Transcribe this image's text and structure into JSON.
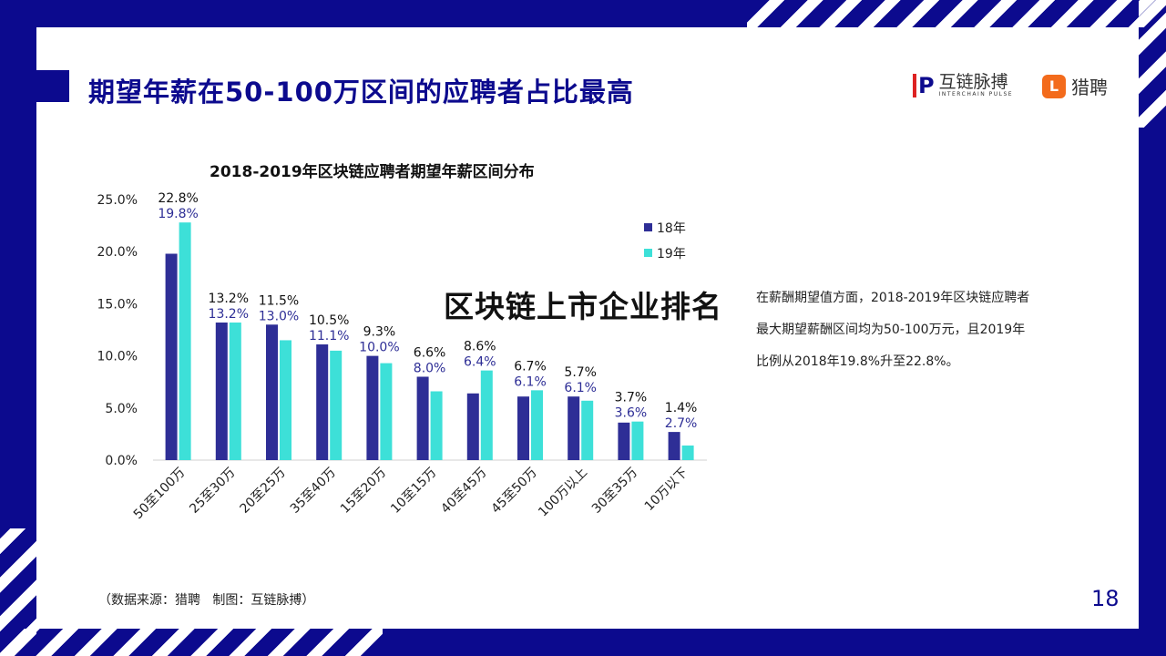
{
  "header": {
    "title": "期望年薪在50-100万区间的应聘者占比最高"
  },
  "logos": {
    "interchain_name": "互链脉搏",
    "interchain_sub": "INTERCHAIN PULSE",
    "liepin_name": "猎聘"
  },
  "overlay_text": "区块链上市企业排名",
  "description": [
    "在薪酬期望值方面，2018-2019年区块链应聘者",
    "最大期望薪酬区间均为50-100万元，且2019年",
    "比例从2018年19.8%升至22.8%。"
  ],
  "source": "（数据来源：猎聘   制图：互链脉搏）",
  "page_number": "18",
  "colors": {
    "brand": "#0c0a8e",
    "series_18": "#2e2e96",
    "series_19": "#3de0d8"
  },
  "chart_data": {
    "type": "bar",
    "title": "2018-2019年区块链应聘者期望年薪区间分布",
    "categories": [
      "50至100万",
      "25至30万",
      "20至25万",
      "35至40万",
      "15至20万",
      "10至15万",
      "40至45万",
      "45至50万",
      "100万以上",
      "30至35万",
      "10万以下"
    ],
    "series": [
      {
        "name": "18年",
        "values": [
          19.8,
          13.2,
          13.0,
          11.1,
          10.0,
          8.0,
          6.4,
          6.1,
          6.1,
          3.6,
          2.7
        ]
      },
      {
        "name": "19年",
        "values": [
          22.8,
          13.2,
          11.5,
          10.5,
          9.3,
          6.6,
          8.6,
          6.7,
          5.7,
          3.7,
          1.4
        ]
      }
    ],
    "ylim": [
      0,
      25
    ],
    "yticks": [
      "0.0%",
      "5.0%",
      "10.0%",
      "15.0%",
      "20.0%",
      "25.0%"
    ],
    "grid": false,
    "legend": "right"
  }
}
